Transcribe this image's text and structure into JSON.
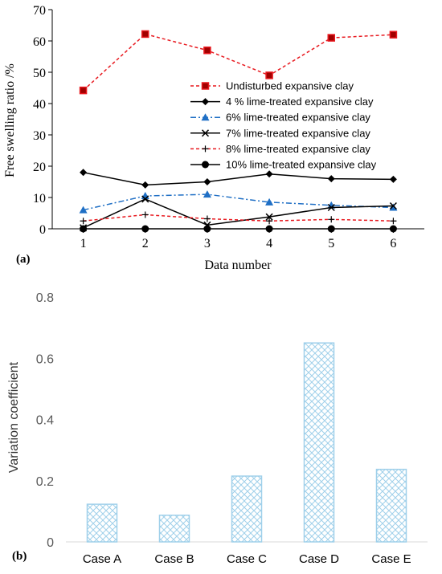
{
  "chart_data": [
    {
      "type": "line",
      "panel_label": "(a)",
      "xlabel": "Data number",
      "ylabel": "Free swelling ratio /%",
      "x": [
        1,
        2,
        3,
        4,
        5,
        6
      ],
      "xlim": [
        0.5,
        6.5
      ],
      "ylim": [
        0,
        70
      ],
      "yticks": [
        0,
        10,
        20,
        30,
        40,
        50,
        60,
        70
      ],
      "grid": false,
      "legend_position": "center-right",
      "series": [
        {
          "name": "Undisturbed expansive clay",
          "values": [
            44.2,
            62.2,
            57.0,
            49.0,
            61.0,
            62.0
          ],
          "color": "#e8191f",
          "line": "dashed",
          "marker": "square-red-fill"
        },
        {
          "name": "4 % lime-treated expansive clay",
          "values": [
            18.0,
            14.0,
            15.0,
            17.5,
            16.0,
            15.8
          ],
          "color": "#000000",
          "line": "solid",
          "marker": "diamond"
        },
        {
          "name": "6% lime-treated expansive clay",
          "values": [
            6.0,
            10.5,
            11.0,
            8.5,
            7.5,
            6.8
          ],
          "color": "#1f6fc5",
          "line": "dashdot",
          "marker": "triangle"
        },
        {
          "name": "7% lime-treated expansive clay",
          "values": [
            0.3,
            9.5,
            1.2,
            3.8,
            6.8,
            7.3
          ],
          "color": "#000000",
          "line": "solid",
          "marker": "x"
        },
        {
          "name": "8% lime-treated expansive clay",
          "values": [
            2.5,
            4.5,
            3.2,
            2.5,
            3.0,
            2.5
          ],
          "color": "#e8191f",
          "line": "dashed",
          "marker": "plus"
        },
        {
          "name": "10% lime-treated expansive clay",
          "values": [
            0,
            0,
            0,
            0,
            0,
            0
          ],
          "color": "#000000",
          "line": "solid",
          "marker": "circle"
        }
      ]
    },
    {
      "type": "bar",
      "panel_label": "(b)",
      "xlabel": "",
      "ylabel": "Variation coefficient",
      "categories": [
        "Case A",
        "Case B",
        "Case C",
        "Case D",
        "Case E"
      ],
      "values": [
        0.123,
        0.087,
        0.215,
        0.65,
        0.237
      ],
      "ylim": [
        0,
        0.8
      ],
      "yticks": [
        "0",
        "0.2",
        "0.4",
        "0.6",
        "0.8"
      ],
      "grid": false,
      "color": "#9fd0ea",
      "fill_pattern": "crosshatch"
    }
  ]
}
